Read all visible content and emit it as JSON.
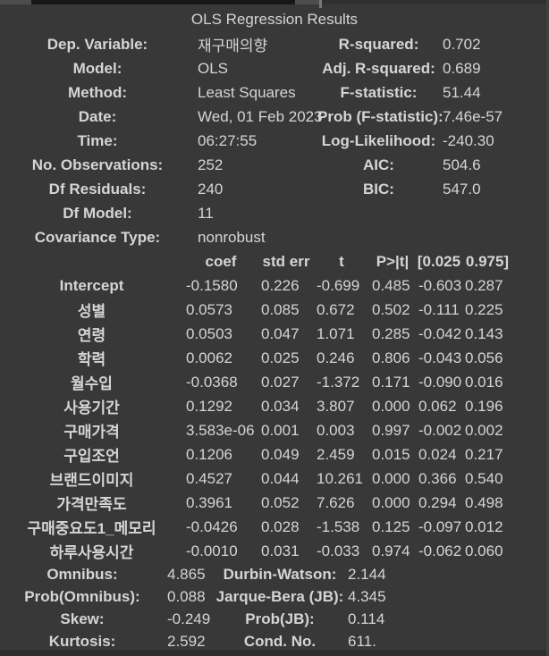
{
  "theme": {
    "background": "#383838",
    "text": "#d5d5d5",
    "top_strip_dark": "#171717",
    "top_strip_gray": "#4d4d4d",
    "bottom_strip": "#2e2e2e"
  },
  "title": "OLS Regression Results",
  "summary_top": {
    "left": [
      {
        "label": "Dep. Variable:",
        "value": "재구매의향"
      },
      {
        "label": "Model:",
        "value": "OLS"
      },
      {
        "label": "Method:",
        "value": "Least Squares"
      },
      {
        "label": "Date:",
        "value": "Wed, 01 Feb 2023"
      },
      {
        "label": "Time:",
        "value": "06:27:55"
      },
      {
        "label": "No. Observations:",
        "value": "252"
      },
      {
        "label": "Df Residuals:",
        "value": "240"
      },
      {
        "label": "Df Model:",
        "value": "11"
      },
      {
        "label": "Covariance Type:",
        "value": "nonrobust"
      }
    ],
    "right": [
      {
        "label": "R-squared:",
        "value": "0.702"
      },
      {
        "label": "Adj. R-squared:",
        "value": "0.689"
      },
      {
        "label": "F-statistic:",
        "value": "51.44"
      },
      {
        "label": "Prob (F-statistic):",
        "value": "7.46e-57"
      },
      {
        "label": "Log-Likelihood:",
        "value": "-240.30"
      },
      {
        "label": "AIC:",
        "value": "504.6"
      },
      {
        "label": "BIC:",
        "value": "547.0"
      },
      {
        "label": "",
        "value": ""
      },
      {
        "label": "",
        "value": ""
      }
    ]
  },
  "coef_table": {
    "headers": [
      "",
      "coef",
      "std err",
      "t",
      "P>|t|",
      "[0.025",
      "0.975]"
    ],
    "rows": [
      [
        "Intercept",
        "-0.1580",
        "0.226",
        "-0.699",
        "0.485",
        "-0.603",
        "0.287"
      ],
      [
        "성별",
        "0.0573",
        "0.085",
        "0.672",
        "0.502",
        "-0.111",
        "0.225"
      ],
      [
        "연령",
        "0.0503",
        "0.047",
        "1.071",
        "0.285",
        "-0.042",
        "0.143"
      ],
      [
        "학력",
        "0.0062",
        "0.025",
        "0.246",
        "0.806",
        "-0.043",
        "0.056"
      ],
      [
        "월수입",
        "-0.0368",
        "0.027",
        "-1.372",
        "0.171",
        "-0.090",
        "0.016"
      ],
      [
        "사용기간",
        "0.1292",
        "0.034",
        "3.807",
        "0.000",
        "0.062",
        "0.196"
      ],
      [
        "구매가격",
        "3.583e-06",
        "0.001",
        "0.003",
        "0.997",
        "-0.002",
        "0.002"
      ],
      [
        "구입조언",
        "0.1206",
        "0.049",
        "2.459",
        "0.015",
        "0.024",
        "0.217"
      ],
      [
        "브랜드이미지",
        "0.4527",
        "0.044",
        "10.261",
        "0.000",
        "0.366",
        "0.540"
      ],
      [
        "가격만족도",
        "0.3961",
        "0.052",
        "7.626",
        "0.000",
        "0.294",
        "0.498"
      ],
      [
        "구매중요도1_메모리",
        "-0.0426",
        "0.028",
        "-1.538",
        "0.125",
        "-0.097",
        "0.012"
      ],
      [
        "하루사용시간",
        "-0.0010",
        "0.031",
        "-0.033",
        "0.974",
        "-0.062",
        "0.060"
      ]
    ]
  },
  "diagnostics": {
    "left": [
      {
        "label": "Omnibus:",
        "value": "4.865"
      },
      {
        "label": "Prob(Omnibus):",
        "value": "0.088"
      },
      {
        "label": "Skew:",
        "value": "-0.249"
      },
      {
        "label": "Kurtosis:",
        "value": "2.592"
      }
    ],
    "right": [
      {
        "label": "Durbin-Watson:",
        "value": "2.144"
      },
      {
        "label": "Jarque-Bera (JB):",
        "value": "4.345"
      },
      {
        "label": "Prob(JB):",
        "value": "0.114"
      },
      {
        "label": "Cond. No.",
        "value": "611."
      }
    ]
  }
}
